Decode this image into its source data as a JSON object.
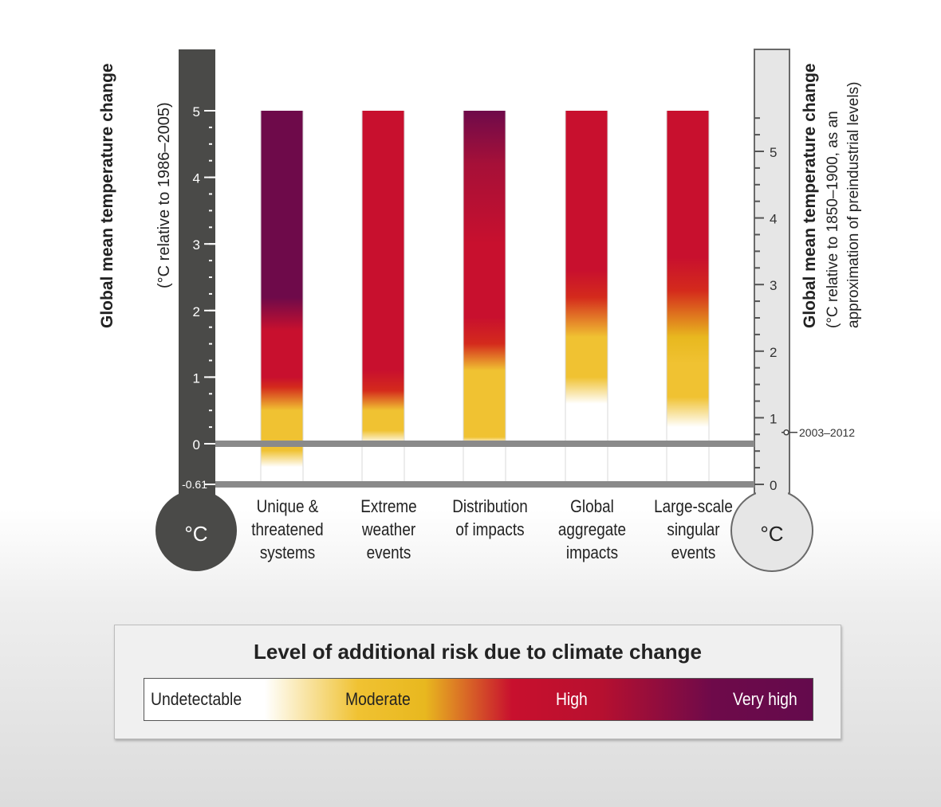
{
  "chart_data": {
    "type": "heatmap",
    "left_axis": {
      "title": "Global mean temperature change",
      "subtitle": "(°C relative to 1986–2005)",
      "unit": "°C",
      "ticks": [
        "5",
        "4",
        "3",
        "2",
        "1",
        "0",
        "-0.61"
      ],
      "range": [
        -0.61,
        5
      ]
    },
    "right_axis": {
      "title": "Global mean temperature change",
      "subtitle_line1": "(°C relative to 1850–1900, as an",
      "subtitle_line2": "approximation of preindustrial levels)",
      "unit": "°C",
      "ticks": [
        "5",
        "4",
        "3",
        "2",
        "1",
        "0"
      ],
      "range": [
        0,
        5.61
      ],
      "annotation": "2003–2012",
      "annotation_value": 0.78
    },
    "categories": [
      [
        "Unique &",
        "threatened",
        "systems"
      ],
      [
        "Extreme",
        "weather",
        "events"
      ],
      [
        "Distribution",
        "of impacts"
      ],
      [
        "Global",
        "aggregate",
        "impacts"
      ],
      [
        "Large-scale",
        "singular",
        "events"
      ]
    ],
    "series": [
      {
        "stops": [
          [
            -0.35,
            "#ffffff"
          ],
          [
            -0.1,
            "#f0c232"
          ],
          [
            0.5,
            "#f0c232"
          ],
          [
            0.85,
            "#d42a1c"
          ],
          [
            1.0,
            "#c8102e"
          ],
          [
            1.7,
            "#c8102e"
          ],
          [
            2.2,
            "#6e0a4a"
          ],
          [
            5,
            "#6e0a4a"
          ]
        ]
      },
      {
        "stops": [
          [
            0.0,
            "#ffffff"
          ],
          [
            0.2,
            "#f0c232"
          ],
          [
            0.5,
            "#f0c232"
          ],
          [
            0.8,
            "#d42a1c"
          ],
          [
            1.1,
            "#c8102e"
          ],
          [
            5,
            "#c8102e"
          ]
        ]
      },
      {
        "stops": [
          [
            0.0,
            "#ffffff"
          ],
          [
            0.1,
            "#f0c232"
          ],
          [
            1.1,
            "#f0c232"
          ],
          [
            1.5,
            "#d42a1c"
          ],
          [
            1.9,
            "#c8102e"
          ],
          [
            3.0,
            "#c8102e"
          ],
          [
            4.2,
            "#a61038"
          ],
          [
            5,
            "#6e0a4a"
          ]
        ]
      },
      {
        "stops": [
          [
            0.6,
            "#ffffff"
          ],
          [
            1.0,
            "#f0c232"
          ],
          [
            1.6,
            "#f0c232"
          ],
          [
            2.2,
            "#d42a1c"
          ],
          [
            2.6,
            "#c8102e"
          ],
          [
            5,
            "#c8102e"
          ]
        ]
      },
      {
        "stops": [
          [
            0.25,
            "#ffffff"
          ],
          [
            0.7,
            "#f0c232"
          ],
          [
            1.2,
            "#f0c232"
          ],
          [
            1.6,
            "#e8b81f"
          ],
          [
            2.3,
            "#d42a1c"
          ],
          [
            2.8,
            "#c8102e"
          ],
          [
            5,
            "#c8102e"
          ]
        ]
      }
    ],
    "legend": {
      "title": "Level of additional risk due to climate change",
      "labels": [
        "Undetectable",
        "Moderate",
        "High",
        "Very high"
      ],
      "colors": [
        "#ffffff",
        "#f0c232",
        "#c8102e",
        "#6e0a4a"
      ]
    }
  }
}
